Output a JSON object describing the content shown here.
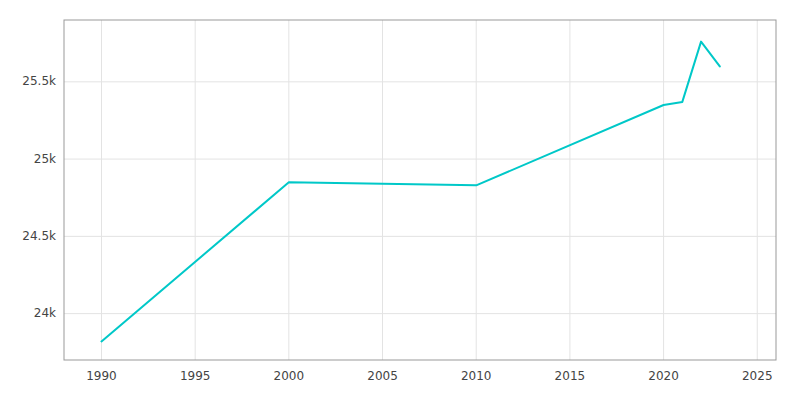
{
  "chart_data": {
    "type": "line",
    "x": [
      1990,
      2000,
      2010,
      2020,
      2021,
      2022,
      2023
    ],
    "values": [
      23820,
      24850,
      24830,
      25350,
      25370,
      25760,
      25600
    ],
    "color": "#00C8C8",
    "xlim": [
      1988,
      2026
    ],
    "ylim": [
      23700,
      25900
    ],
    "xticks": [
      1990,
      1995,
      2000,
      2005,
      2010,
      2015,
      2020,
      2025
    ],
    "yticks": [
      {
        "value": 24000,
        "label": "24k"
      },
      {
        "value": 24500,
        "label": "24.5k"
      },
      {
        "value": 25000,
        "label": "25k"
      },
      {
        "value": 25500,
        "label": "25.5k"
      }
    ],
    "grid": true
  }
}
